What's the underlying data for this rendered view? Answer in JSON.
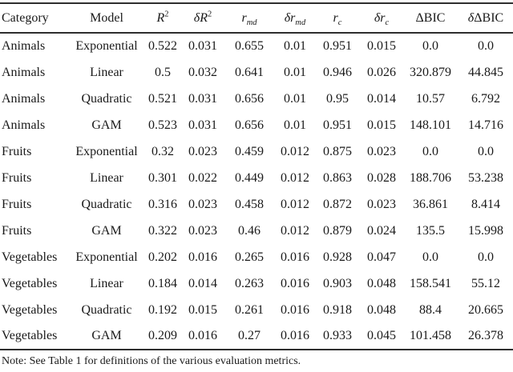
{
  "table": {
    "headers": [
      {
        "name": "category",
        "parts": [
          {
            "t": "Category",
            "s": "up"
          }
        ]
      },
      {
        "name": "model",
        "parts": [
          {
            "t": "Model",
            "s": "up"
          }
        ]
      },
      {
        "name": "r-squared",
        "parts": [
          {
            "t": "R",
            "s": "it"
          },
          {
            "t": "2",
            "s": "sup"
          }
        ]
      },
      {
        "name": "delta-r-squared",
        "parts": [
          {
            "t": "δ",
            "s": "it"
          },
          {
            "t": "R",
            "s": "it"
          },
          {
            "t": "2",
            "s": "sup"
          }
        ]
      },
      {
        "name": "r-md",
        "parts": [
          {
            "t": "r",
            "s": "it"
          },
          {
            "t": "md",
            "s": "sub"
          }
        ]
      },
      {
        "name": "delta-r-md",
        "parts": [
          {
            "t": "δ",
            "s": "it"
          },
          {
            "t": "r",
            "s": "it"
          },
          {
            "t": "md",
            "s": "sub"
          }
        ]
      },
      {
        "name": "r-c",
        "parts": [
          {
            "t": "r",
            "s": "it"
          },
          {
            "t": "c",
            "s": "sub"
          }
        ]
      },
      {
        "name": "delta-r-c",
        "parts": [
          {
            "t": "δ",
            "s": "it"
          },
          {
            "t": "r",
            "s": "it"
          },
          {
            "t": "c",
            "s": "sub"
          }
        ]
      },
      {
        "name": "delta-bic",
        "parts": [
          {
            "t": "ΔBIC",
            "s": "up"
          }
        ]
      },
      {
        "name": "delta-delta-bic",
        "parts": [
          {
            "t": "δ",
            "s": "it"
          },
          {
            "t": "ΔBIC",
            "s": "up"
          }
        ]
      }
    ],
    "rows": [
      [
        "Animals",
        "Exponential",
        "0.522",
        "0.031",
        "0.655",
        "0.01",
        "0.951",
        "0.015",
        "0.0",
        "0.0"
      ],
      [
        "Animals",
        "Linear",
        "0.5",
        "0.032",
        "0.641",
        "0.01",
        "0.946",
        "0.026",
        "320.879",
        "44.845"
      ],
      [
        "Animals",
        "Quadratic",
        "0.521",
        "0.031",
        "0.656",
        "0.01",
        "0.95",
        "0.014",
        "10.57",
        "6.792"
      ],
      [
        "Animals",
        "GAM",
        "0.523",
        "0.031",
        "0.656",
        "0.01",
        "0.951",
        "0.015",
        "148.101",
        "14.716"
      ],
      [
        "Fruits",
        "Exponential",
        "0.32",
        "0.023",
        "0.459",
        "0.012",
        "0.875",
        "0.023",
        "0.0",
        "0.0"
      ],
      [
        "Fruits",
        "Linear",
        "0.301",
        "0.022",
        "0.449",
        "0.012",
        "0.863",
        "0.028",
        "188.706",
        "53.238"
      ],
      [
        "Fruits",
        "Quadratic",
        "0.316",
        "0.023",
        "0.458",
        "0.012",
        "0.872",
        "0.023",
        "36.861",
        "8.414"
      ],
      [
        "Fruits",
        "GAM",
        "0.322",
        "0.023",
        "0.46",
        "0.012",
        "0.879",
        "0.024",
        "135.5",
        "15.998"
      ],
      [
        "Vegetables",
        "Exponential",
        "0.202",
        "0.016",
        "0.265",
        "0.016",
        "0.928",
        "0.047",
        "0.0",
        "0.0"
      ],
      [
        "Vegetables",
        "Linear",
        "0.184",
        "0.014",
        "0.263",
        "0.016",
        "0.903",
        "0.048",
        "158.541",
        "55.12"
      ],
      [
        "Vegetables",
        "Quadratic",
        "0.192",
        "0.015",
        "0.261",
        "0.016",
        "0.918",
        "0.048",
        "88.4",
        "20.665"
      ],
      [
        "Vegetables",
        "GAM",
        "0.209",
        "0.016",
        "0.27",
        "0.016",
        "0.933",
        "0.045",
        "101.458",
        "26.378"
      ]
    ]
  },
  "note": "Note: See Table 1 for definitions of the various evaluation metrics.",
  "colors": {
    "text": "#1a1a1a",
    "rule": "#2e2e2e",
    "background": "#ffffff"
  }
}
